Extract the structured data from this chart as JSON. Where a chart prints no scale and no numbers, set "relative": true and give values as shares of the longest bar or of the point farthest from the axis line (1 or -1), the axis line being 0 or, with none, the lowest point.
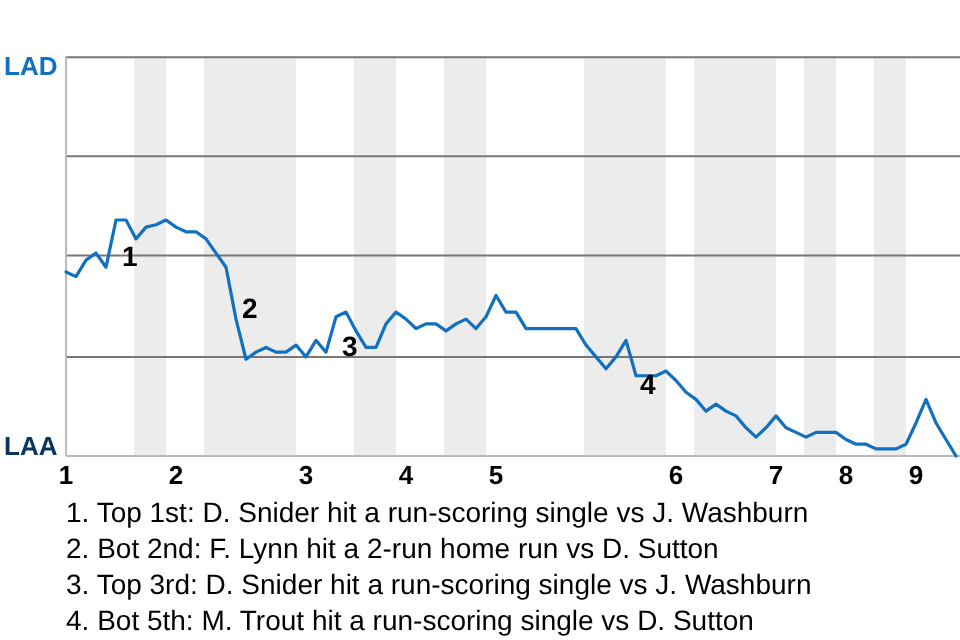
{
  "chart_data": {
    "type": "line",
    "relative": true,
    "categories": [
      "1",
      null,
      null,
      null,
      null,
      null,
      null,
      null,
      null,
      null,
      null,
      "2",
      null,
      null,
      null,
      null,
      null,
      null,
      null,
      null,
      null,
      null,
      null,
      null,
      "3",
      null,
      null,
      null,
      null,
      null,
      null,
      null,
      null,
      null,
      "4",
      null,
      null,
      null,
      null,
      null,
      null,
      null,
      null,
      "5",
      null,
      null,
      null,
      null,
      null,
      null,
      null,
      null,
      null,
      null,
      null,
      null,
      null,
      null,
      null,
      null,
      null,
      "6",
      null,
      null,
      null,
      null,
      null,
      null,
      null,
      null,
      null,
      "7",
      null,
      null,
      null,
      null,
      null,
      null,
      "8",
      null,
      null,
      null,
      null,
      null,
      null,
      "9",
      null,
      null,
      null,
      null
    ],
    "series": [
      {
        "color": "#1170c0",
        "values": [
          0.78,
          0.76,
          0.83,
          0.86,
          0.8,
          1,
          1,
          0.92,
          0.97,
          0.98,
          1,
          0.97,
          0.95,
          0.95,
          0.92,
          0.86,
          0.8,
          0.58,
          0.41,
          0.44,
          0.46,
          0.44,
          0.44,
          0.47,
          0.42,
          0.49,
          0.44,
          0.59,
          0.61,
          0.53,
          0.46,
          0.46,
          0.56,
          0.61,
          0.58,
          0.54,
          0.56,
          0.56,
          0.53,
          0.56,
          0.58,
          0.54,
          0.59,
          0.68,
          0.61,
          0.61,
          0.54,
          0.54,
          0.54,
          0.54,
          0.54,
          0.54,
          0.47,
          0.42,
          0.37,
          0.42,
          0.49,
          0.34,
          0.34,
          0.34,
          0.36,
          0.32,
          0.27,
          0.24,
          0.19,
          0.22,
          0.19,
          0.17,
          0.12,
          0.08,
          0.12,
          0.17,
          0.12,
          0.1,
          0.08,
          0.1,
          0.1,
          0.1,
          0.07,
          0.05,
          0.05,
          0.03,
          0.03,
          0.03,
          0.05,
          0.14,
          0.24,
          0.14,
          0.07,
          0
        ]
      }
    ],
    "ref_lines": [
      {
        "axis": "y",
        "value": 0.42,
        "color": "#777777"
      },
      {
        "axis": "y",
        "value": 0.85,
        "color": "#777777"
      },
      {
        "axis": "y",
        "value": 1.27,
        "color": "#777777"
      },
      {
        "axis": "y",
        "value": 1.69,
        "color": "#777777"
      }
    ],
    "marker": "none",
    "line_style": "solid",
    "annotations": [
      "LAD",
      "LAA",
      "1",
      "2",
      "3",
      "4",
      "1. Top 1st: D. Snider hit a run-scoring single vs J. Washburn",
      "2. Bot 2nd: F. Lynn hit a 2-run home run vs D. Sutton",
      "3. Top 3rd: D. Snider hit a run-scoring single vs J. Washburn",
      "4. Bot 5th: M. Trout hit a run-scoring single vs D. Sutton"
    ]
  }
}
